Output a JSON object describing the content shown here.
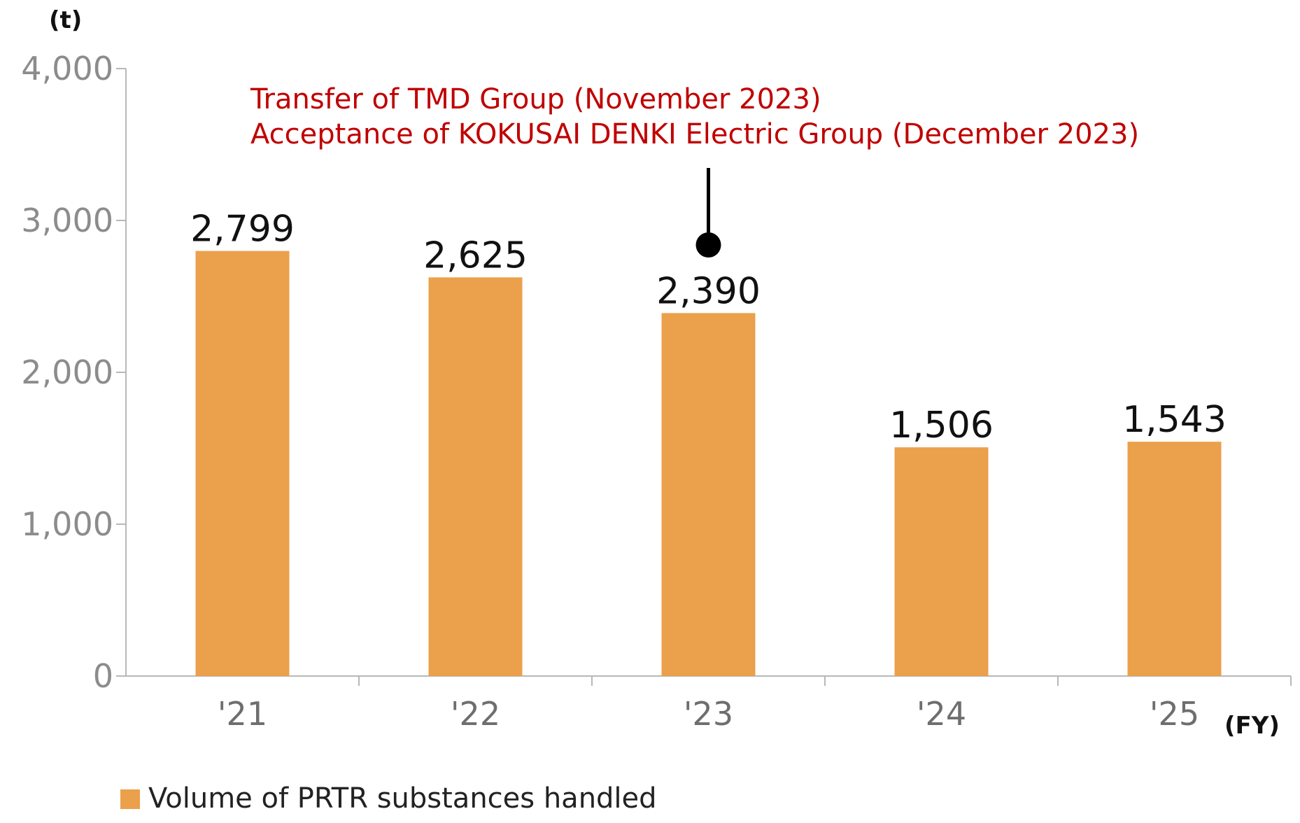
{
  "chart_data": {
    "type": "bar",
    "categories": [
      "'21",
      "'22",
      "'23",
      "'24",
      "'25"
    ],
    "series": [
      {
        "name": "Volume of PRTR substances handled",
        "values": [
          2799,
          2625,
          2390,
          1506,
          1543
        ],
        "color": "#eba04b"
      }
    ],
    "data_labels": [
      "2,799",
      "2,625",
      "2,390",
      "1,506",
      "1,543"
    ],
    "y_unit": "(t)",
    "x_unit": "(FY)",
    "ylim": [
      0,
      4000
    ],
    "yticks": [
      0,
      1000,
      2000,
      3000,
      4000
    ],
    "ytick_labels": [
      "0",
      "1,000",
      "2,000",
      "3,000",
      "4,000"
    ],
    "grid": false,
    "legend_position": "bottom-left",
    "annotation": {
      "lines": [
        "Transfer of TMD Group (November 2023)",
        "Acceptance of KOKUSAI DENKI Electric Group (December 2023)"
      ],
      "category": "'23",
      "color": "#c00000"
    }
  }
}
